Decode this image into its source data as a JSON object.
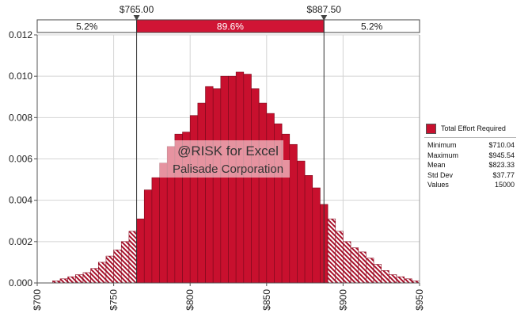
{
  "chart_data": {
    "type": "bar",
    "title": "",
    "xlabel": "",
    "ylabel": "",
    "xlim": [
      700,
      950
    ],
    "ylim": [
      0,
      0.012
    ],
    "x_ticks": [
      "$700",
      "$750",
      "$800",
      "$850",
      "$900",
      "$950"
    ],
    "y_ticks": [
      "0.000",
      "0.002",
      "0.004",
      "0.006",
      "0.008",
      "0.010",
      "0.012"
    ],
    "bin_width": 5,
    "bins_start": [
      710,
      715,
      720,
      725,
      730,
      735,
      740,
      745,
      750,
      755,
      760,
      765,
      770,
      775,
      780,
      785,
      790,
      795,
      800,
      805,
      810,
      815,
      820,
      825,
      830,
      835,
      840,
      845,
      850,
      855,
      860,
      865,
      870,
      875,
      880,
      885,
      890,
      895,
      900,
      905,
      910,
      915,
      920,
      925,
      930,
      935,
      940,
      945
    ],
    "values": [
      0.0001,
      0.0002,
      0.0003,
      0.0004,
      0.0005,
      0.0007,
      0.001,
      0.0013,
      0.0016,
      0.002,
      0.0025,
      0.0031,
      0.0045,
      0.0051,
      0.0058,
      0.0066,
      0.0072,
      0.0073,
      0.0081,
      0.0087,
      0.0095,
      0.0094,
      0.01,
      0.01,
      0.0102,
      0.0101,
      0.0094,
      0.0087,
      0.0082,
      0.0077,
      0.0072,
      0.0067,
      0.0059,
      0.0052,
      0.0046,
      0.0038,
      0.0031,
      0.0025,
      0.002,
      0.0017,
      0.0015,
      0.0012,
      0.0009,
      0.0006,
      0.0004,
      0.0003,
      0.0002,
      0.0001
    ],
    "left_cutoff": 765,
    "right_cutoff": 887.5,
    "delimiters": [
      {
        "value": 765,
        "label": "$765.00"
      },
      {
        "value": 887.5,
        "label": "$887.50"
      }
    ],
    "probability_bands": [
      "5.2%",
      "89.6%",
      "5.2%"
    ],
    "colors": {
      "middle_fill": "#c8102e",
      "middle_stroke": "#7a0a1c",
      "tail_fill": "#a8102a",
      "band_fill": "#d01535",
      "grid": "#d4d4d4"
    },
    "grid": true,
    "legend_position": "right"
  },
  "legend": {
    "series_name": "Total Effort Required",
    "stats": [
      {
        "label": "Minimum",
        "value": "$710.04"
      },
      {
        "label": "Maximum",
        "value": "$945.54"
      },
      {
        "label": "Mean",
        "value": "$823.33"
      },
      {
        "label": "Std Dev",
        "value": "$37.77"
      },
      {
        "label": "Values",
        "value": "15000"
      }
    ]
  },
  "watermark": {
    "line1": "@RISK for Excel",
    "line2": "Palisade Corporation"
  }
}
